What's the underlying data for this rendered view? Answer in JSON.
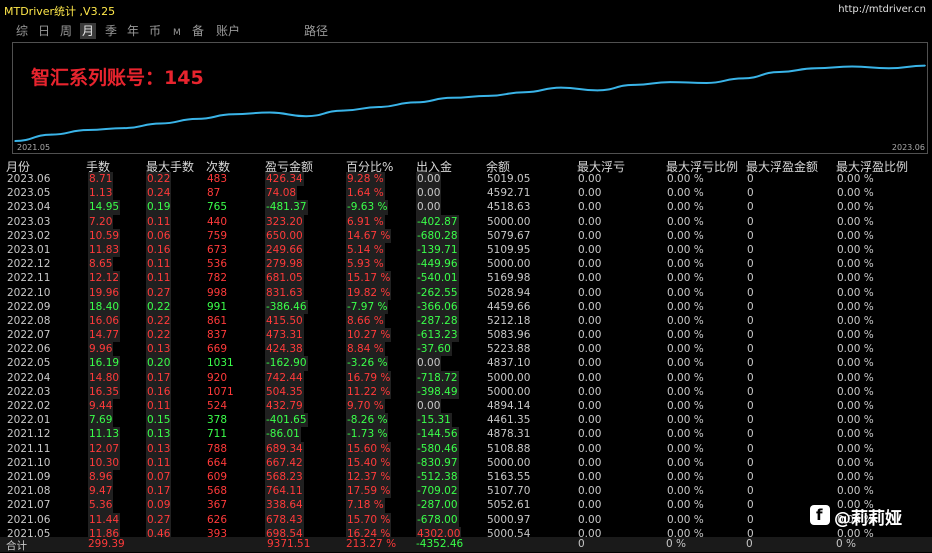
{
  "app": {
    "title": "MTDriver统计 ,V3.25",
    "site": "http://mtdriver.cn"
  },
  "tabs": [
    {
      "label": "综",
      "active": false
    },
    {
      "label": "日",
      "active": false
    },
    {
      "label": "周",
      "active": false
    },
    {
      "label": "月",
      "active": true
    },
    {
      "label": "季",
      "active": false
    },
    {
      "label": "年",
      "active": false
    },
    {
      "label": "币",
      "active": false
    },
    {
      "label": "M",
      "active": false
    },
    {
      "label": "备",
      "active": false
    },
    {
      "label": "账户",
      "active": false
    },
    {
      "label": "路径",
      "active": false
    }
  ],
  "chart": {
    "account_label": "智汇系列账号：145",
    "date_start": "2021.05",
    "date_end": "2023.06",
    "line_color": "#3ab4e8",
    "y_range": [
      0,
      1
    ]
  },
  "chart_data": {
    "type": "line",
    "x": [
      "2021.05",
      "2021.06",
      "2021.07",
      "2021.08",
      "2021.09",
      "2021.10",
      "2021.11",
      "2021.12",
      "2022.01",
      "2022.02",
      "2022.03",
      "2022.04",
      "2022.05",
      "2022.06",
      "2022.07",
      "2022.08",
      "2022.09",
      "2022.10",
      "2022.11",
      "2022.12",
      "2023.01",
      "2023.02",
      "2023.03",
      "2023.04",
      "2023.05",
      "2023.06"
    ],
    "series": [
      {
        "values": [
          0.0,
          0.07,
          0.12,
          0.14,
          0.19,
          0.24,
          0.29,
          0.31,
          0.27,
          0.33,
          0.37,
          0.42,
          0.47,
          0.49,
          0.53,
          0.58,
          0.55,
          0.61,
          0.64,
          0.63,
          0.68,
          0.75,
          0.79,
          0.81,
          0.79,
          0.82
        ]
      }
    ],
    "title": "",
    "xlabel": "",
    "ylabel": ""
  },
  "headers": [
    "月份",
    "手数",
    "最大手数",
    "次数",
    "盈亏金额",
    "百分比%",
    "出入金",
    "余额",
    "最大浮亏",
    "最大浮亏比例",
    "最大浮盈金额",
    "最大浮盈比例"
  ],
  "rows": [
    [
      "2023.06",
      "8.71",
      "0.22",
      "483",
      "426.34",
      "9.28 %",
      "0.00",
      "5019.05",
      "0.00",
      "0.00 %",
      "0",
      "0.00 %",
      "neg"
    ],
    [
      "2023.05",
      "1.13",
      "0.24",
      "87",
      "74.08",
      "1.64 %",
      "0.00",
      "4592.71",
      "0.00",
      "0.00 %",
      "0",
      "0.00 %",
      "neg"
    ],
    [
      "2023.04",
      "14.95",
      "0.19",
      "765",
      "-481.37",
      "-9.63 %",
      "0.00",
      "4518.63",
      "0.00",
      "0.00 %",
      "0",
      "0.00 %",
      "pos"
    ],
    [
      "2023.03",
      "7.20",
      "0.11",
      "440",
      "323.20",
      "6.91 %",
      "-402.87",
      "5000.00",
      "0.00",
      "0.00 %",
      "0",
      "0.00 %",
      "neg"
    ],
    [
      "2023.02",
      "10.59",
      "0.06",
      "759",
      "650.00",
      "14.67 %",
      "-680.28",
      "5079.67",
      "0.00",
      "0.00 %",
      "0",
      "0.00 %",
      "neg"
    ],
    [
      "2023.01",
      "11.83",
      "0.16",
      "673",
      "249.66",
      "5.14 %",
      "-139.71",
      "5109.95",
      "0.00",
      "0.00 %",
      "0",
      "0.00 %",
      "neg"
    ],
    [
      "2022.12",
      "8.65",
      "0.11",
      "536",
      "279.98",
      "5.93 %",
      "-449.96",
      "5000.00",
      "0.00",
      "0.00 %",
      "0",
      "0.00 %",
      "neg"
    ],
    [
      "2022.11",
      "12.12",
      "0.11",
      "782",
      "681.05",
      "15.17 %",
      "-540.01",
      "5169.98",
      "0.00",
      "0.00 %",
      "0",
      "0.00 %",
      "neg"
    ],
    [
      "2022.10",
      "19.96",
      "0.27",
      "998",
      "831.63",
      "19.82 %",
      "-262.55",
      "5028.94",
      "0.00",
      "0.00 %",
      "0",
      "0.00 %",
      "neg"
    ],
    [
      "2022.09",
      "18.40",
      "0.22",
      "991",
      "-386.46",
      "-7.97 %",
      "-366.06",
      "4459.66",
      "0.00",
      "0.00 %",
      "0",
      "0.00 %",
      "pos"
    ],
    [
      "2022.08",
      "16.06",
      "0.22",
      "861",
      "415.50",
      "8.66 %",
      "-287.28",
      "5212.18",
      "0.00",
      "0.00 %",
      "0",
      "0.00 %",
      "neg"
    ],
    [
      "2022.07",
      "14.77",
      "0.22",
      "837",
      "473.31",
      "10.27 %",
      "-613.23",
      "5083.96",
      "0.00",
      "0.00 %",
      "0",
      "0.00 %",
      "neg"
    ],
    [
      "2022.06",
      "9.96",
      "0.13",
      "669",
      "424.38",
      "8.84 %",
      "-37.60",
      "5223.88",
      "0.00",
      "0.00 %",
      "0",
      "0.00 %",
      "neg"
    ],
    [
      "2022.05",
      "16.19",
      "0.20",
      "1031",
      "-162.90",
      "-3.26 %",
      "0.00",
      "4837.10",
      "0.00",
      "0.00 %",
      "0",
      "0.00 %",
      "pos"
    ],
    [
      "2022.04",
      "14.80",
      "0.17",
      "920",
      "742.44",
      "16.79 %",
      "-718.72",
      "5000.00",
      "0.00",
      "0.00 %",
      "0",
      "0.00 %",
      "neg"
    ],
    [
      "2022.03",
      "16.35",
      "0.16",
      "1071",
      "504.35",
      "11.22 %",
      "-398.49",
      "5000.00",
      "0.00",
      "0.00 %",
      "0",
      "0.00 %",
      "neg"
    ],
    [
      "2022.02",
      "9.44",
      "0.11",
      "524",
      "432.79",
      "9.70 %",
      "0.00",
      "4894.14",
      "0.00",
      "0.00 %",
      "0",
      "0.00 %",
      "neg"
    ],
    [
      "2022.01",
      "7.69",
      "0.15",
      "378",
      "-401.65",
      "-8.26 %",
      "-15.31",
      "4461.35",
      "0.00",
      "0.00 %",
      "0",
      "0.00 %",
      "pos"
    ],
    [
      "2021.12",
      "11.13",
      "0.13",
      "711",
      "-86.01",
      "-1.73 %",
      "-144.56",
      "4878.31",
      "0.00",
      "0.00 %",
      "0",
      "0.00 %",
      "pos"
    ],
    [
      "2021.11",
      "12.07",
      "0.13",
      "788",
      "689.34",
      "15.60 %",
      "-580.46",
      "5108.88",
      "0.00",
      "0.00 %",
      "0",
      "0.00 %",
      "neg"
    ],
    [
      "2021.10",
      "10.30",
      "0.11",
      "664",
      "667.42",
      "15.40 %",
      "-830.97",
      "5000.00",
      "0.00",
      "0.00 %",
      "0",
      "0.00 %",
      "neg"
    ],
    [
      "2021.09",
      "8.96",
      "0.07",
      "609",
      "568.23",
      "12.37 %",
      "-512.38",
      "5163.55",
      "0.00",
      "0.00 %",
      "0",
      "0.00 %",
      "neg"
    ],
    [
      "2021.08",
      "9.47",
      "0.17",
      "568",
      "764.11",
      "17.59 %",
      "-709.02",
      "5107.70",
      "0.00",
      "0.00 %",
      "0",
      "0.00 %",
      "neg"
    ],
    [
      "2021.07",
      "5.36",
      "0.09",
      "367",
      "338.64",
      "7.18 %",
      "-287.00",
      "5052.61",
      "0.00",
      "0.00 %",
      "0",
      "0.00 %",
      "neg"
    ],
    [
      "2021.06",
      "11.44",
      "0.27",
      "626",
      "678.43",
      "15.70 %",
      "-678.00",
      "5000.97",
      "0.00",
      "0.00 %",
      "0",
      "0.00 %",
      "neg"
    ],
    [
      "2021.05",
      "11.86",
      "0.46",
      "393",
      "698.54",
      "16.24 %",
      "4302.00",
      "5000.54",
      "0.00",
      "0.00 %",
      "0",
      "0.00 %",
      "neg"
    ]
  ],
  "footer": {
    "label": "合计",
    "lots": "299.39",
    "pnl": "9371.51",
    "pct": "213.27 %",
    "flow": "-4352.46",
    "max_loss": "0",
    "max_loss_pct": "0 %",
    "max_gain": "0",
    "max_gain_pct": "0 %"
  },
  "watermark": {
    "logo": "f",
    "text": "@莉莉娅"
  }
}
